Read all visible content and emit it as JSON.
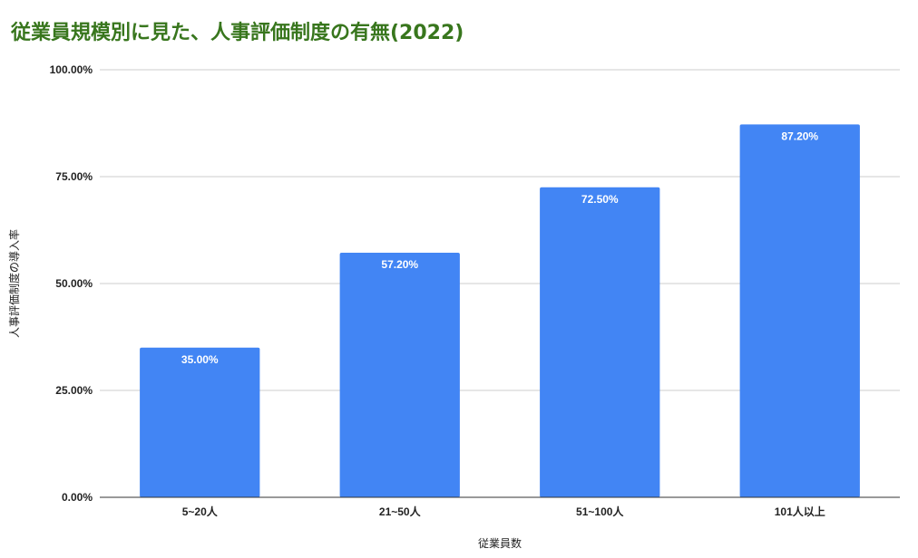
{
  "chart_data": {
    "type": "bar",
    "title": "従業員規模別に見た、人事評価制度の有無(2022)",
    "xlabel": "従業員数",
    "ylabel": "人事評価制度の導入率",
    "categories": [
      "5~20人",
      "21~50人",
      "51~100人",
      "101人以上"
    ],
    "values": [
      35.0,
      57.2,
      72.5,
      87.2
    ],
    "value_labels": [
      "35.00%",
      "57.20%",
      "72.50%",
      "87.20%"
    ],
    "ylim": [
      0,
      100
    ],
    "yticks": [
      0,
      25,
      50,
      75,
      100
    ],
    "ytick_labels": [
      "0.00%",
      "25.00%",
      "50.00%",
      "75.00%",
      "100.00%"
    ],
    "grid": true,
    "bar_color": "#4285f4",
    "title_color": "#38761d"
  }
}
